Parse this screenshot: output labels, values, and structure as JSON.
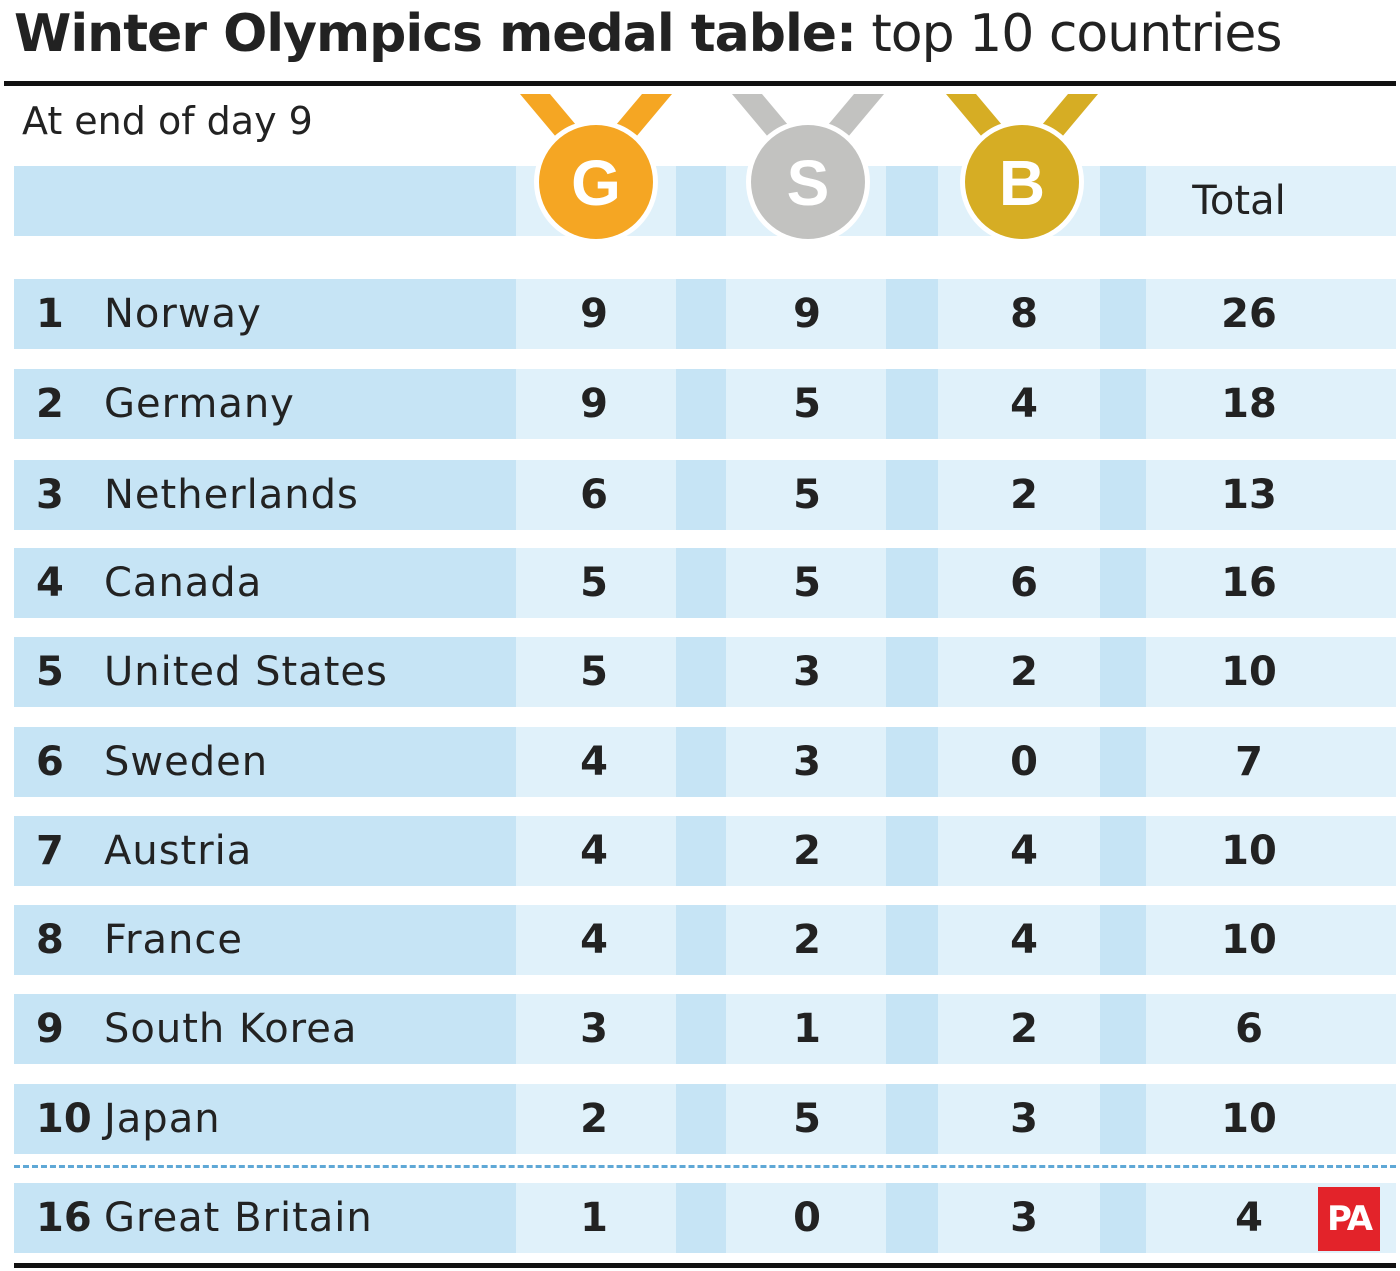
{
  "title_bold": "Winter Olympics medal table:",
  "title_light": " top 10 countries",
  "subtitle": "At end of day 9",
  "medals": {
    "gold": {
      "letter": "G",
      "color": "#f5a623",
      "ribbon": "#f5a623"
    },
    "silver": {
      "letter": "S",
      "color": "#c2c2c0",
      "ribbon": "#c2c2c0"
    },
    "bronze": {
      "letter": "B",
      "color": "#d6ad24",
      "ribbon": "#d6ad24"
    }
  },
  "header_total": "Total",
  "logo": "PA",
  "chart_data": {
    "type": "table",
    "title": "Winter Olympics medal table: top 10 countries",
    "subtitle": "At end of day 9",
    "columns": [
      "G",
      "S",
      "B",
      "Total"
    ],
    "rows": [
      {
        "rank": "1",
        "country": "Norway",
        "gold": "9",
        "silver": "9",
        "bronze": "8",
        "total": "26"
      },
      {
        "rank": "2",
        "country": "Germany",
        "gold": "9",
        "silver": "5",
        "bronze": "4",
        "total": "18"
      },
      {
        "rank": "3",
        "country": "Netherlands",
        "gold": "6",
        "silver": "5",
        "bronze": "2",
        "total": "13"
      },
      {
        "rank": "4",
        "country": "Canada",
        "gold": "5",
        "silver": "5",
        "bronze": "6",
        "total": "16"
      },
      {
        "rank": "5",
        "country": "United States",
        "gold": "5",
        "silver": "3",
        "bronze": "2",
        "total": "10"
      },
      {
        "rank": "6",
        "country": "Sweden",
        "gold": "4",
        "silver": "3",
        "bronze": "0",
        "total": "7"
      },
      {
        "rank": "7",
        "country": "Austria",
        "gold": "4",
        "silver": "2",
        "bronze": "4",
        "total": "10"
      },
      {
        "rank": "8",
        "country": "France",
        "gold": "4",
        "silver": "2",
        "bronze": "4",
        "total": "10"
      },
      {
        "rank": "9",
        "country": "South Korea",
        "gold": "3",
        "silver": "1",
        "bronze": "2",
        "total": "6"
      },
      {
        "rank": "10",
        "country": "Japan",
        "gold": "2",
        "silver": "5",
        "bronze": "3",
        "total": "10"
      }
    ],
    "highlight_row": {
      "rank": "16",
      "country": "Great Britain",
      "gold": "1",
      "silver": "0",
      "bronze": "3",
      "total": "4"
    }
  }
}
